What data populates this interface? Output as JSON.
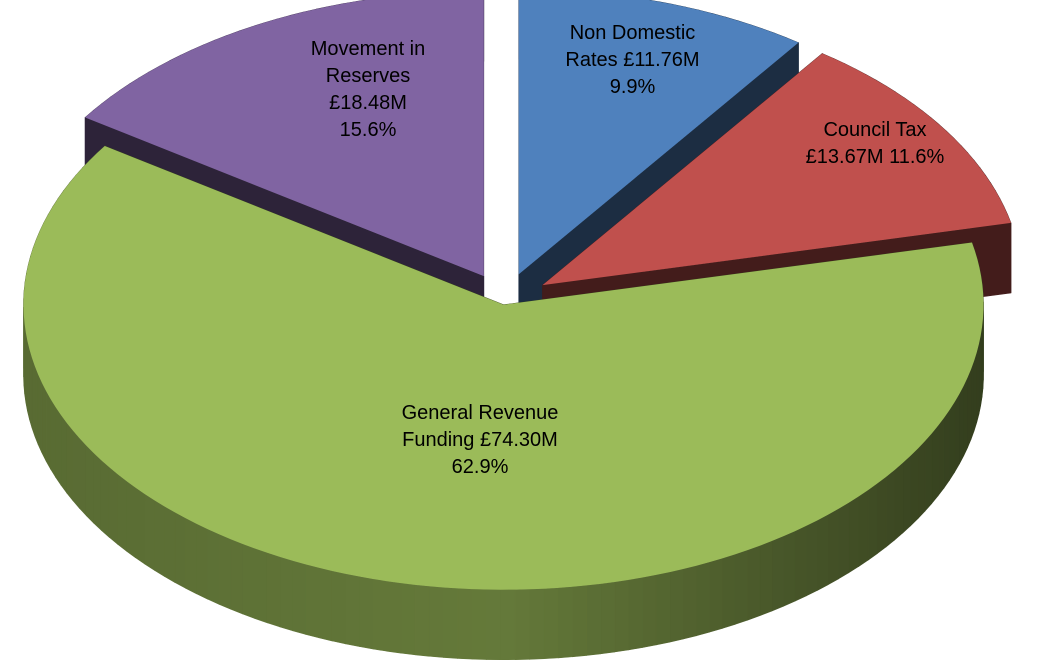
{
  "chart_data": {
    "type": "pie3d",
    "categories": [
      "Non Domestic Rates",
      "Council Tax",
      "General Revenue Funding",
      "Movement in Reserves"
    ],
    "values": [
      9.9,
      11.6,
      62.9,
      15.6
    ],
    "value_labels": [
      "9.9%",
      "11.6%",
      "62.9%",
      "15.6%"
    ],
    "amounts": [
      11.76,
      13.67,
      74.3,
      18.48
    ],
    "amount_labels": [
      "£11.76M",
      "£13.67M",
      "£74.30M",
      "£18.48M"
    ],
    "colors": [
      "#4f81bd",
      "#c0504d",
      "#9bbb59",
      "#8064a2"
    ]
  }
}
